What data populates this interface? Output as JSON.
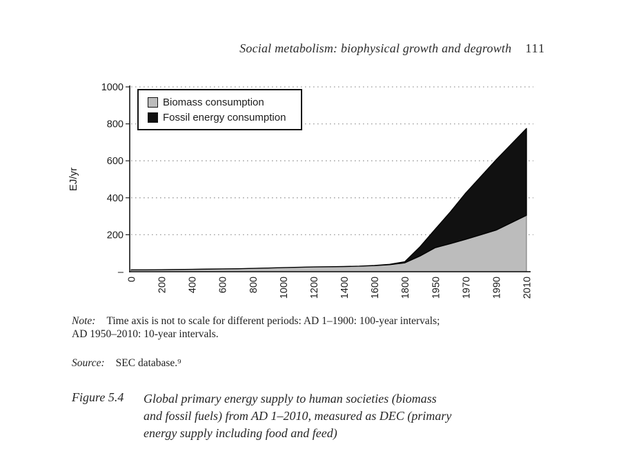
{
  "header": {
    "title": "Social metabolism: biophysical growth and degrowth",
    "page_number": "111"
  },
  "chart_data": {
    "type": "area",
    "stacked": true,
    "ylabel": "EJ/yr",
    "ylim": [
      0,
      1000
    ],
    "yticks": [
      0,
      200,
      400,
      600,
      800,
      1000
    ],
    "ytick_labels": [
      "–",
      "200",
      "400",
      "600",
      "800",
      "1000"
    ],
    "grid": "dotted-horizontal",
    "legend_position": "top-left",
    "x_axis_note": "categorical spacing: 100-year intervals AD 1-1900, 10-year intervals 1950-2010",
    "years": [
      1,
      100,
      200,
      300,
      400,
      500,
      600,
      700,
      800,
      900,
      1000,
      1100,
      1200,
      1300,
      1400,
      1500,
      1600,
      1700,
      1800,
      1900,
      1950,
      1960,
      1970,
      1980,
      1990,
      2000,
      2010
    ],
    "xtick_point_indices": [
      0,
      2,
      4,
      6,
      8,
      10,
      12,
      14,
      16,
      18,
      20,
      22,
      24,
      26
    ],
    "xtick_labels": [
      "0",
      "200",
      "400",
      "600",
      "800",
      "1000",
      "1200",
      "1400",
      "1600",
      "1800",
      "1950",
      "1970",
      "1990",
      "2010"
    ],
    "series": [
      {
        "name": "Biomass consumption",
        "color": "#bcbcbc",
        "edge": "#6f6f6f",
        "values": [
          10,
          10,
          11,
          12,
          13,
          14,
          15,
          16,
          18,
          20,
          22,
          24,
          26,
          27,
          28,
          30,
          33,
          38,
          48,
          85,
          130,
          152,
          175,
          200,
          225,
          265,
          305
        ]
      },
      {
        "name": "Fossil energy consumption",
        "color": "#111111",
        "edge": "#000000",
        "values": [
          0,
          0,
          0,
          0,
          0,
          0,
          0,
          0,
          0,
          0,
          0,
          0,
          0,
          0,
          0,
          0,
          1,
          2,
          6,
          50,
          100,
          172,
          250,
          315,
          380,
          425,
          470
        ]
      }
    ],
    "colors": {
      "grid": "#9a9a9a",
      "axis": "#222222",
      "text": "#1c1c1c"
    }
  },
  "note": {
    "label": "Note:",
    "line1": "Time axis is not to scale for different periods: AD 1–1900: 100-year intervals;",
    "line2": "AD 1950–2010: 10-year intervals."
  },
  "source": {
    "label": "Source:",
    "text": "SEC database.⁹"
  },
  "caption": {
    "label": "Figure 5.4",
    "lines": [
      "Global primary energy supply to human societies (biomass",
      "and fossil fuels) from AD 1–2010, measured as DEC (primary",
      "energy supply including food and feed)"
    ]
  }
}
